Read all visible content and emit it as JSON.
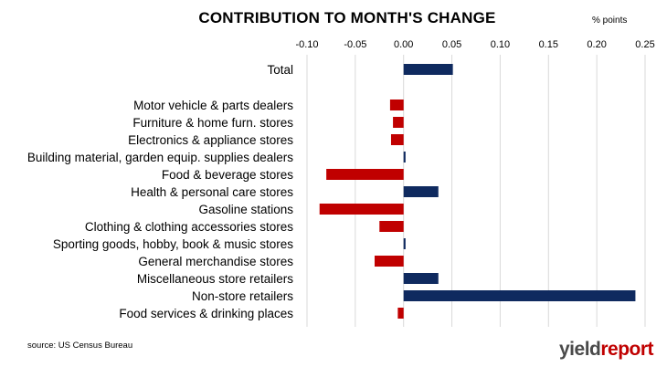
{
  "chart_data": {
    "type": "bar",
    "orientation": "horizontal",
    "title": "CONTRIBUTION TO MONTH'S CHANGE",
    "units_label": "% points",
    "xlim": [
      -0.1,
      0.25
    ],
    "xticks": [
      "-0.10",
      "-0.05",
      "0.00",
      "0.05",
      "0.10",
      "0.15",
      "0.20",
      "0.25"
    ],
    "grid": "vertical",
    "colors": {
      "positive": "#0f2a5f",
      "negative": "#c00000"
    },
    "categories": [
      "Total",
      "Motor vehicle & parts dealers",
      "Furniture & home furn. stores",
      "Electronics & appliance stores",
      "Building material, garden equip. supplies dealers",
      "Food & beverage stores",
      "Health & personal care stores",
      "Gasoline stations",
      "Clothing & clothing accessories stores",
      "Sporting goods, hobby, book & music stores",
      "General merchandise stores",
      "Miscellaneous store retailers",
      "Non-store retailers",
      "Food services & drinking places"
    ],
    "values": [
      0.051,
      -0.014,
      -0.011,
      -0.013,
      0.002,
      -0.08,
      0.036,
      -0.087,
      -0.025,
      0.002,
      -0.03,
      0.036,
      0.24,
      -0.006
    ]
  },
  "footer": {
    "source": "source: US Census Bureau",
    "brand_prefix": "yield",
    "brand_suffix": "report"
  }
}
